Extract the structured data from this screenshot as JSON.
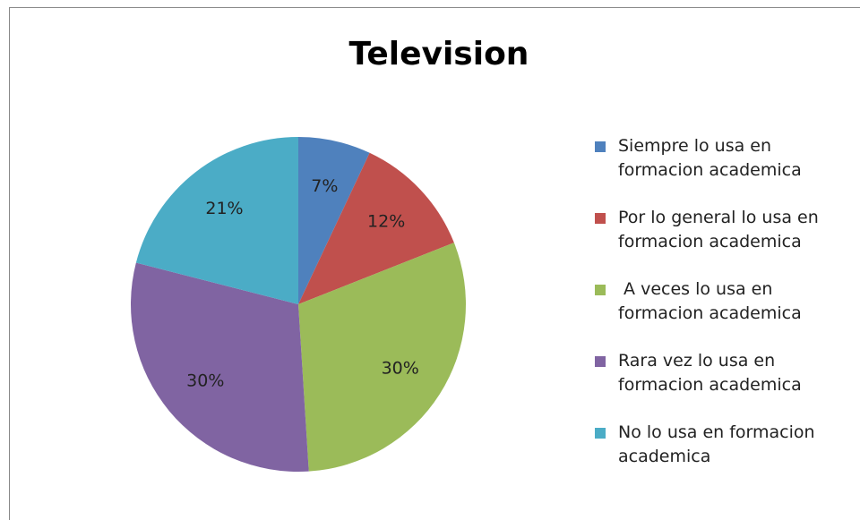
{
  "chart_data": {
    "type": "pie",
    "title": "Television",
    "categories": [
      "Siempre lo usa en formacion academica",
      "Por lo general lo usa en formacion academica",
      " A veces lo usa en formacion academica",
      "Rara vez lo usa en formacion academica",
      "No lo usa en formacion academica"
    ],
    "values": [
      7,
      12,
      30,
      30,
      21
    ],
    "value_labels": [
      "7%",
      "12%",
      "30%",
      "30%",
      "21%"
    ],
    "colors": [
      "#4f81bd",
      "#c0504d",
      "#9bbb59",
      "#8064a2",
      "#4bacc6"
    ],
    "legend": "right"
  }
}
